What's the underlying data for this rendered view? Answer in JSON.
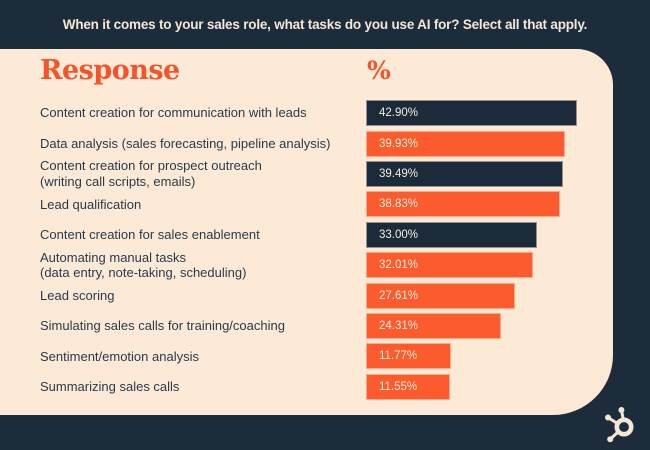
{
  "banner": {
    "title": "When it comes to your sales role, what tasks do you use AI for? Select all that apply."
  },
  "table_headers": {
    "response": "Response",
    "percent": "%"
  },
  "chart_data": {
    "type": "bar",
    "orientation": "horizontal",
    "title": "When it comes to your sales role, what tasks do you use AI for? Select all that apply.",
    "xlabel": "%",
    "ylabel": "Response",
    "categories": [
      "Content creation for communication with leads",
      "Data analysis (sales forecasting, pipeline analysis)",
      "Content creation for prospect outreach\n(writing call scripts, emails)",
      "Lead qualification",
      "Content creation for sales enablement",
      "Automating manual tasks\n(data entry, note-taking, scheduling)",
      "Lead scoring",
      "Simulating sales calls for training/coaching",
      "Sentiment/emotion analysis",
      "Summarizing sales calls"
    ],
    "values": [
      42.9,
      39.93,
      39.49,
      38.83,
      33.0,
      32.01,
      27.61,
      24.31,
      11.77,
      11.55
    ],
    "value_labels": [
      "42.90%",
      "39.93%",
      "39.49%",
      "38.83%",
      "33.00%",
      "32.01%",
      "27.61%",
      "24.31%",
      "11.77%",
      "11.55%"
    ],
    "bar_colors": [
      "#1C2B3A",
      "#FB5B2D",
      "#1C2B3A",
      "#FB5B2D",
      "#1C2B3A",
      "#FB5B2D",
      "#FB5B2D",
      "#FB5B2D",
      "#FB5B2D",
      "#FB5B2D"
    ],
    "legend": [],
    "grid": false
  },
  "colors": {
    "background_navy": "#1D2C3B",
    "bar_navy": "#1C2B3A",
    "bar_orange": "#FB5B2D",
    "accent_orange": "#F4532B",
    "panel_cream": "#FCEAD6",
    "label_navy": "#293A4B"
  },
  "logo": {
    "name": "hubspot-sprocket"
  }
}
